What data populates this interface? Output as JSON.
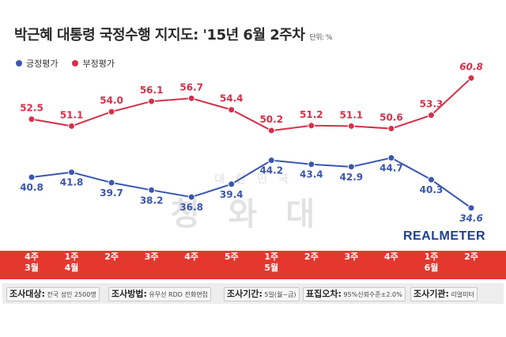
{
  "title": "박근혜 대통령 국정수행 지지도: '15년 6월 2주차",
  "unit": "단위: %",
  "brand": "REALMETER",
  "watermark": {
    "top": "대한민국",
    "main": "청와대"
  },
  "colors": {
    "positive": "#3a56b0",
    "negative": "#d6304a",
    "band": "#e4382f"
  },
  "chart_data": {
    "type": "line",
    "categories": [
      "4주 3월",
      "1주 4월",
      "2주",
      "3주",
      "4주",
      "5주",
      "1주 5월",
      "2주",
      "3주",
      "4주",
      "1주 6월",
      "2주"
    ],
    "series": [
      {
        "name": "긍정평가",
        "values": [
          40.8,
          41.8,
          39.7,
          38.2,
          36.8,
          39.4,
          44.2,
          43.4,
          42.9,
          44.7,
          40.3,
          34.6
        ]
      },
      {
        "name": "부정평가",
        "values": [
          52.5,
          51.1,
          54.0,
          56.1,
          56.7,
          54.4,
          50.2,
          51.2,
          51.1,
          50.6,
          53.3,
          60.8
        ]
      }
    ],
    "legend": "top-left",
    "grid": false
  },
  "weeks": [
    {
      "week": "4주",
      "month": "3월"
    },
    {
      "week": "1주",
      "month": "4월"
    },
    {
      "week": "2주",
      "month": ""
    },
    {
      "week": "3주",
      "month": ""
    },
    {
      "week": "4주",
      "month": ""
    },
    {
      "week": "5주",
      "month": ""
    },
    {
      "week": "1주",
      "month": "5월"
    },
    {
      "week": "2주",
      "month": ""
    },
    {
      "week": "3주",
      "month": ""
    },
    {
      "week": "4주",
      "month": ""
    },
    {
      "week": "1주",
      "month": "6월"
    },
    {
      "week": "2주",
      "month": ""
    }
  ],
  "info": [
    {
      "label": "조사대상:",
      "value": "전국 성인 2500명"
    },
    {
      "label": "조사방법:",
      "value": "유무선 RDD 전화면접"
    },
    {
      "label": "조사기간:",
      "value": "5일(월~금)"
    },
    {
      "label": "표집오차:",
      "value": "95%신뢰수준±2.0%"
    },
    {
      "label": "조사기관:",
      "value": "리얼미터"
    }
  ]
}
